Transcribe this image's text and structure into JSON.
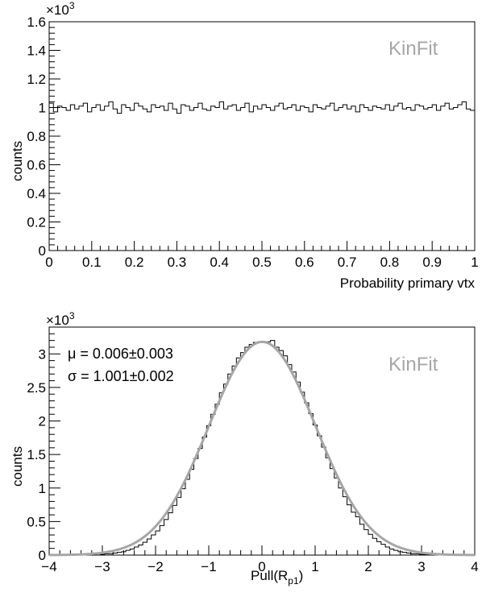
{
  "chart_data": [
    {
      "type": "histogram",
      "xlabel": "Probability primary vtx",
      "ylabel": "counts",
      "xlim": [
        0,
        1
      ],
      "ylim": [
        0,
        1.6
      ],
      "y_multiplier": {
        "base": "×10",
        "exp": "3"
      },
      "annotation": "KinFit",
      "x_ticks": [
        "0",
        "0.1",
        "0.2",
        "0.3",
        "0.4",
        "0.5",
        "0.6",
        "0.7",
        "0.8",
        "0.9",
        "1"
      ],
      "y_ticks": [
        "0",
        "0.2",
        "0.4",
        "0.6",
        "0.8",
        "1",
        "1.2",
        "1.4",
        "1.6"
      ],
      "bins": 100,
      "values": [
        1.03,
        0.97,
        1.01,
        1.0,
        0.98,
        1.02,
        0.99,
        1.01,
        1.03,
        0.97,
        1.0,
        1.02,
        0.98,
        1.01,
        1.04,
        0.99,
        0.96,
        1.02,
        1.0,
        0.98,
        1.03,
        1.01,
        0.99,
        0.97,
        1.02,
        1.0,
        1.01,
        0.98,
        1.03,
        0.99,
        0.96,
        1.02,
        1.01,
        0.98,
        1.0,
        1.03,
        0.99,
        0.98,
        1.01,
        1.0,
        1.04,
        0.99,
        1.01,
        1.02,
        0.98,
        1.0,
        1.03,
        0.97,
        1.01,
        0.99,
        1.02,
        1.0,
        0.98,
        1.01,
        1.03,
        0.99,
        1.0,
        1.02,
        0.98,
        1.01,
        1.0,
        0.97,
        1.02,
        1.0,
        0.99,
        1.01,
        1.03,
        0.98,
        1.0,
        1.02,
        0.99,
        1.01,
        0.97,
        1.02,
        1.0,
        0.98,
        1.01,
        1.0,
        0.99,
        1.02,
        0.98,
        1.01,
        1.03,
        0.99,
        1.0,
        0.98,
        1.02,
        1.01,
        0.99,
        1.0,
        1.02,
        0.98,
        1.01,
        1.03,
        0.99,
        1.0,
        1.02,
        1.04,
        0.99,
        0.98
      ]
    },
    {
      "type": "histogram",
      "xlabel": "Pull(R",
      "xlabel_sub": "p1",
      "xlabel_close": ")",
      "ylabel": "counts",
      "xlim": [
        -4,
        4
      ],
      "ylim": [
        0,
        3.4
      ],
      "y_multiplier": {
        "base": "×10",
        "exp": "3"
      },
      "annotation": "KinFit",
      "stats": [
        "μ = 0.006±0.003",
        "σ = 1.001±0.002"
      ],
      "x_ticks": [
        "−4",
        "−3",
        "−2",
        "−1",
        "0",
        "1",
        "2",
        "3",
        "4"
      ],
      "y_ticks": [
        "0",
        "0.5",
        "1",
        "1.5",
        "2",
        "2.5",
        "3"
      ],
      "bins": 100,
      "fit": {
        "function": "gaussian",
        "mean": 0.006,
        "sigma": 1.001,
        "amplitude": 3.18,
        "color": "#a6a6a6"
      },
      "values": [
        0.0,
        0.0,
        0.0,
        0.0,
        0.0,
        0.0,
        0.0,
        0.0,
        0.0,
        0.0,
        0.0,
        0.0,
        0.01,
        0.02,
        0.02,
        0.03,
        0.04,
        0.05,
        0.07,
        0.09,
        0.12,
        0.15,
        0.19,
        0.24,
        0.3,
        0.36,
        0.44,
        0.53,
        0.63,
        0.74,
        0.86,
        0.99,
        1.13,
        1.28,
        1.44,
        1.59,
        1.76,
        1.93,
        2.1,
        2.25,
        2.42,
        2.55,
        2.7,
        2.82,
        2.94,
        3.02,
        3.1,
        3.14,
        3.17,
        3.18,
        3.17,
        3.18,
        3.2,
        3.1,
        3.05,
        2.97,
        2.84,
        2.73,
        2.58,
        2.43,
        2.27,
        2.11,
        1.94,
        1.78,
        1.61,
        1.45,
        1.29,
        1.15,
        1.0,
        0.87,
        0.75,
        0.64,
        0.57,
        0.46,
        0.38,
        0.31,
        0.25,
        0.2,
        0.16,
        0.12,
        0.09,
        0.07,
        0.05,
        0.04,
        0.03,
        0.02,
        0.02,
        0.01,
        0.01,
        0.0,
        0.0,
        0.0,
        0.0,
        0.0,
        0.0,
        0.0,
        0.0,
        0.0,
        0.0,
        0.0
      ]
    }
  ]
}
